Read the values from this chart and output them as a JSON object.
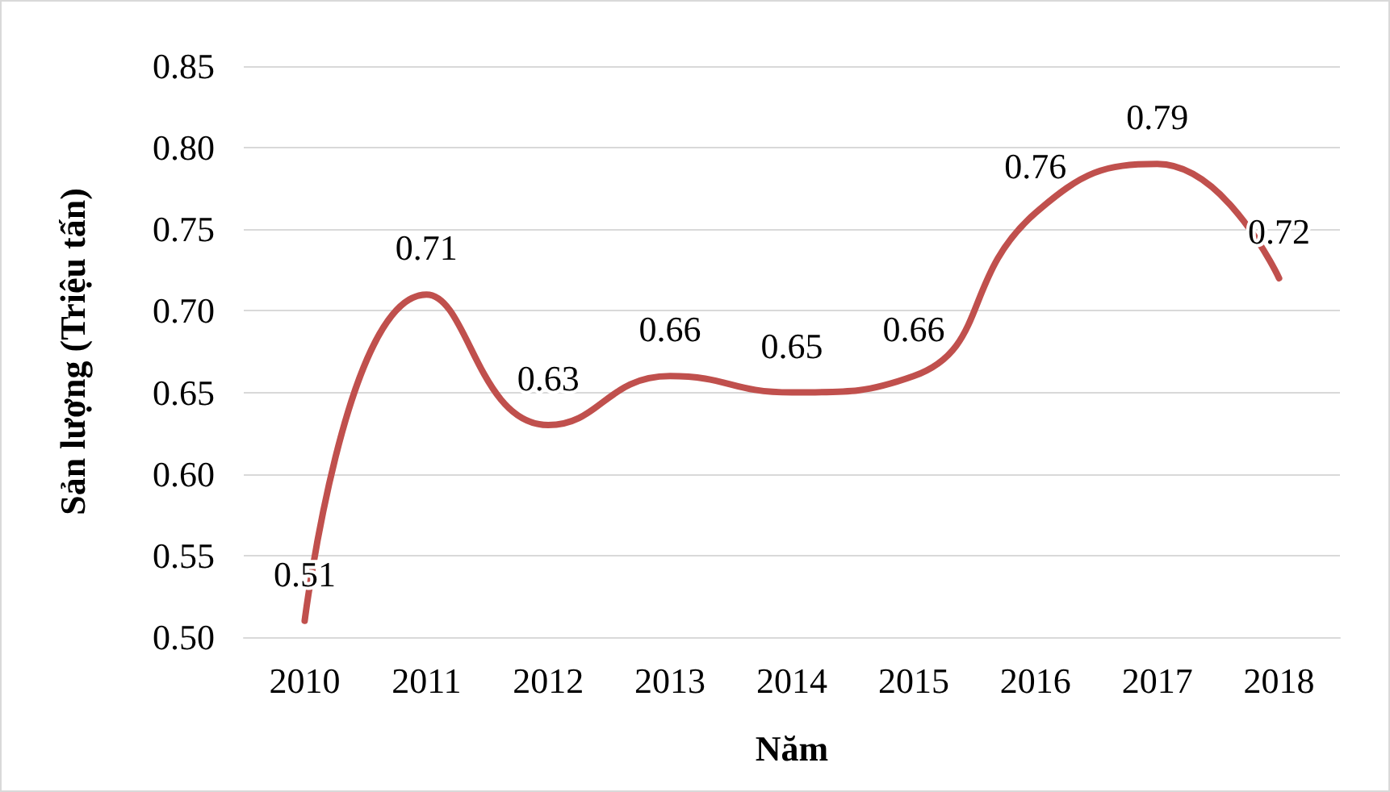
{
  "chart_data": {
    "type": "line",
    "xlabel": "Năm",
    "ylabel": "Sản lượng (Triệu tấn)",
    "categories": [
      "2010",
      "2011",
      "2012",
      "2013",
      "2014",
      "2015",
      "2016",
      "2017",
      "2018"
    ],
    "series": [
      {
        "color": "#c0504d",
        "values": [
          0.51,
          0.71,
          0.63,
          0.66,
          0.65,
          0.66,
          0.76,
          0.79,
          0.72
        ]
      }
    ],
    "ylim": [
      0.5,
      0.85
    ],
    "yticks": [
      {
        "value": 0.5,
        "label": "0.50"
      },
      {
        "value": 0.55,
        "label": "0.55"
      },
      {
        "value": 0.6,
        "label": "0.60"
      },
      {
        "value": 0.65,
        "label": "0.65"
      },
      {
        "value": 0.7,
        "label": "0.70"
      },
      {
        "value": 0.75,
        "label": "0.75"
      },
      {
        "value": 0.8,
        "label": "0.80"
      },
      {
        "value": 0.85,
        "label": "0.85"
      }
    ],
    "grid": "y",
    "data_labels": true,
    "marker": "none",
    "line_style": "solid"
  }
}
